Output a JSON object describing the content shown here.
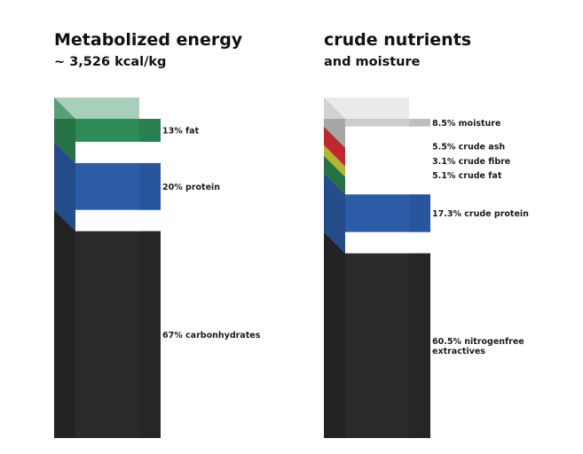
{
  "chart_data": [
    {
      "type": "bar",
      "title": "Metabolized energy",
      "subtitle": "~ 3,526 kcal/kg",
      "unit": "%",
      "segments": [
        {
          "label": "13% fat",
          "value": 13,
          "color": "#2e8b57"
        },
        {
          "label": "20% protein",
          "value": 20,
          "color": "#2c5ca8"
        },
        {
          "label": "67% carbonhydrates",
          "value": 67,
          "color": "#2a2a2a"
        }
      ]
    },
    {
      "type": "bar",
      "title": "crude nutrients",
      "subtitle": "and moisture",
      "unit": "%",
      "segments": [
        {
          "label": "8.5% moisture",
          "value": 8.5,
          "color": "#cccccc"
        },
        {
          "label": "5.5% crude ash",
          "value": 5.5,
          "color": "#e8323c"
        },
        {
          "label": "3.1% crude fibre",
          "value": 3.1,
          "color": "#d8e03a"
        },
        {
          "label": "5.1% crude fat",
          "value": 5.1,
          "color": "#2e8b57"
        },
        {
          "label": "17.3% crude protein",
          "value": 17.3,
          "color": "#2c5ca8"
        },
        {
          "label": "60.5% nitrogenfree extractives",
          "value": 60.5,
          "color": "#2a2a2a"
        }
      ]
    }
  ]
}
